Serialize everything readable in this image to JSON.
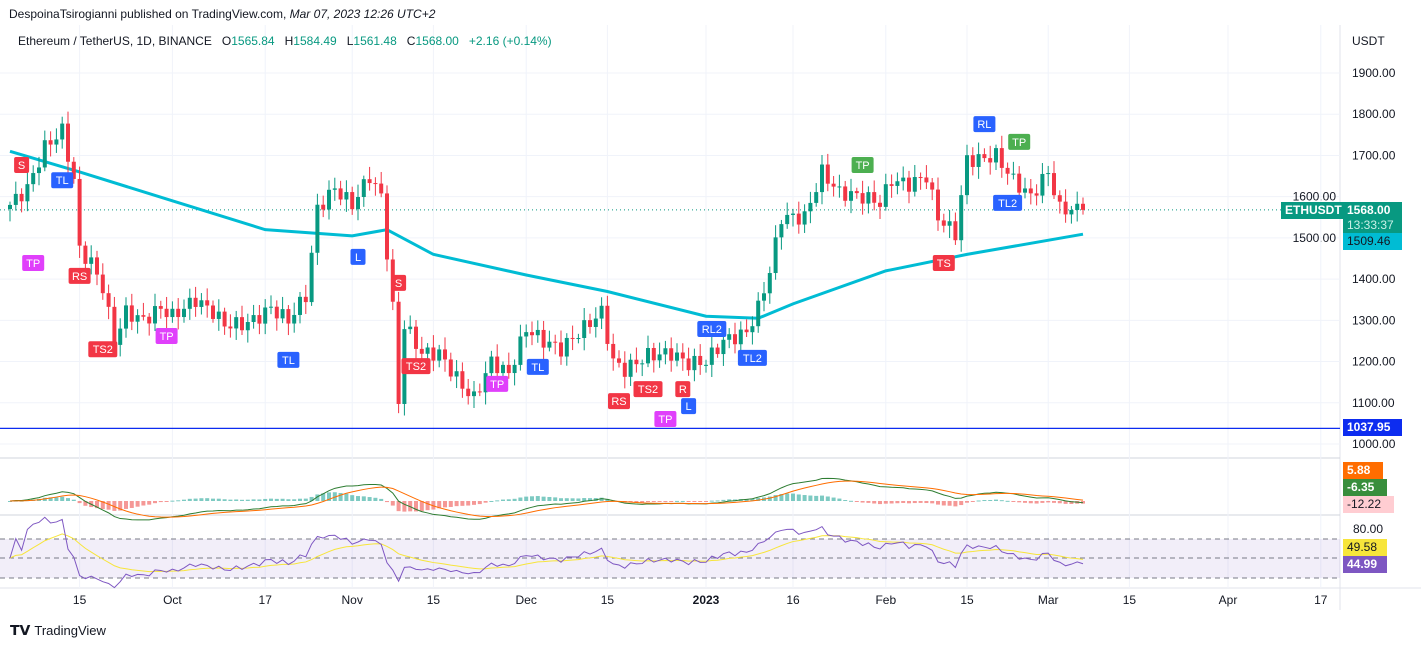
{
  "header": {
    "publisher": "DespoinaTsirogianni published on TradingView.com,",
    "published_date": "Mar 07, 2023 12:26 UTC+2"
  },
  "legend": {
    "symbol": "Ethereum / TetherUS, 1D, BINANCE",
    "open_label": "O",
    "open": "1565.84",
    "high_label": "H",
    "high": "1584.49",
    "low_label": "L",
    "low": "1561.48",
    "close_label": "C",
    "close": "1568.00",
    "change": "+2.16 (+0.14%)"
  },
  "axis": {
    "currency": "USDT",
    "symbol_tag": "ETHUSDT",
    "last_price": "1568.00",
    "countdown": "13:33:37",
    "ma_value": "1509.46",
    "hline_value": "1037.95",
    "macd_values": [
      "5.88",
      "-6.35",
      "-12.22"
    ],
    "rsi_values": [
      "49.58",
      "44.99"
    ],
    "rsi_top": "80.00"
  },
  "footer": {
    "brand": "TradingView"
  },
  "colors": {
    "up": "#089981",
    "down": "#f23645",
    "ma": "#00bcd4",
    "hline": "#0d2cf0",
    "rsi": "#7e57c2",
    "rsi_ma": "#f7e53b",
    "macd": "#2e7d32",
    "signal": "#ff6d00"
  },
  "chart_data": {
    "type": "candlestick",
    "start_date": "2022-09-03",
    "ylim": [
      1000,
      1950
    ],
    "yticks": [
      1000,
      1100,
      1200,
      1300,
      1400,
      1500,
      1600,
      1700,
      1800,
      1900
    ],
    "xticks": [
      {
        "label": "15",
        "date": "2022-09-15"
      },
      {
        "label": "Oct",
        "date": "2022-10-01"
      },
      {
        "label": "17",
        "date": "2022-10-17"
      },
      {
        "label": "Nov",
        "date": "2022-11-01"
      },
      {
        "label": "15",
        "date": "2022-11-15"
      },
      {
        "label": "Dec",
        "date": "2022-12-01"
      },
      {
        "label": "15",
        "date": "2022-12-15"
      },
      {
        "label": "2023",
        "date": "2023-01-01"
      },
      {
        "label": "16",
        "date": "2023-01-16"
      },
      {
        "label": "Feb",
        "date": "2023-02-01"
      },
      {
        "label": "15",
        "date": "2023-02-15"
      },
      {
        "label": "Mar",
        "date": "2023-03-01"
      },
      {
        "label": "15",
        "date": "2023-03-15"
      },
      {
        "label": "Apr",
        "date": "2023-04-01"
      },
      {
        "label": "17",
        "date": "2023-04-17"
      }
    ],
    "close_path": [
      [
        "2022-09-03",
        1580
      ],
      [
        "2022-09-06",
        1620
      ],
      [
        "2022-09-09",
        1720
      ],
      [
        "2022-09-12",
        1760
      ],
      [
        "2022-09-14",
        1640
      ],
      [
        "2022-09-15",
        1470
      ],
      [
        "2022-09-17",
        1440
      ],
      [
        "2022-09-19",
        1380
      ],
      [
        "2022-09-21",
        1250
      ],
      [
        "2022-09-23",
        1320
      ],
      [
        "2022-09-26",
        1300
      ],
      [
        "2022-09-29",
        1330
      ],
      [
        "2022-10-01",
        1310
      ],
      [
        "2022-10-05",
        1350
      ],
      [
        "2022-10-08",
        1320
      ],
      [
        "2022-10-10",
        1290
      ],
      [
        "2022-10-13",
        1290
      ],
      [
        "2022-10-15",
        1300
      ],
      [
        "2022-10-18",
        1330
      ],
      [
        "2022-10-21",
        1300
      ],
      [
        "2022-10-24",
        1360
      ],
      [
        "2022-10-25",
        1460
      ],
      [
        "2022-10-26",
        1570
      ],
      [
        "2022-10-29",
        1620
      ],
      [
        "2022-11-01",
        1580
      ],
      [
        "2022-11-04",
        1650
      ],
      [
        "2022-11-06",
        1600
      ],
      [
        "2022-11-08",
        1330
      ],
      [
        "2022-11-09",
        1100
      ],
      [
        "2022-11-10",
        1290
      ],
      [
        "2022-11-13",
        1220
      ],
      [
        "2022-11-16",
        1220
      ],
      [
        "2022-11-20",
        1140
      ],
      [
        "2022-11-22",
        1110
      ],
      [
        "2022-11-25",
        1200
      ],
      [
        "2022-11-28",
        1170
      ],
      [
        "2022-12-01",
        1280
      ],
      [
        "2022-12-04",
        1250
      ],
      [
        "2022-12-07",
        1230
      ],
      [
        "2022-12-10",
        1270
      ],
      [
        "2022-12-14",
        1320
      ],
      [
        "2022-12-16",
        1200
      ],
      [
        "2022-12-18",
        1180
      ],
      [
        "2022-12-22",
        1215
      ],
      [
        "2022-12-26",
        1220
      ],
      [
        "2022-12-29",
        1195
      ],
      [
        "2023-01-01",
        1200
      ],
      [
        "2023-01-04",
        1250
      ],
      [
        "2023-01-08",
        1270
      ],
      [
        "2023-01-10",
        1330
      ],
      [
        "2023-01-12",
        1420
      ],
      [
        "2023-01-14",
        1550
      ],
      [
        "2023-01-18",
        1550
      ],
      [
        "2023-01-21",
        1660
      ],
      [
        "2023-01-24",
        1610
      ],
      [
        "2023-01-28",
        1600
      ],
      [
        "2023-01-31",
        1585
      ],
      [
        "2023-02-02",
        1640
      ],
      [
        "2023-02-05",
        1630
      ],
      [
        "2023-02-08",
        1650
      ],
      [
        "2023-02-10",
        1550
      ],
      [
        "2023-02-13",
        1510
      ],
      [
        "2023-02-15",
        1690
      ],
      [
        "2023-02-17",
        1690
      ],
      [
        "2023-02-20",
        1700
      ],
      [
        "2023-02-23",
        1640
      ],
      [
        "2023-02-26",
        1600
      ],
      [
        "2023-03-01",
        1660
      ],
      [
        "2023-03-03",
        1570
      ],
      [
        "2023-03-07",
        1568
      ]
    ],
    "moving_average": [
      [
        "2022-09-03",
        1710
      ],
      [
        "2022-09-15",
        1660
      ],
      [
        "2022-10-01",
        1590
      ],
      [
        "2022-10-17",
        1520
      ],
      [
        "2022-11-01",
        1505
      ],
      [
        "2022-11-07",
        1520
      ],
      [
        "2022-11-15",
        1460
      ],
      [
        "2022-12-01",
        1410
      ],
      [
        "2022-12-15",
        1370
      ],
      [
        "2023-01-01",
        1310
      ],
      [
        "2023-01-10",
        1305
      ],
      [
        "2023-01-16",
        1340
      ],
      [
        "2023-02-01",
        1420
      ],
      [
        "2023-02-15",
        1460
      ],
      [
        "2023-03-07",
        1509
      ]
    ],
    "horizontal_line": 1037.95,
    "signals": [
      {
        "label": "S",
        "date": "2022-09-05",
        "price": 1677,
        "color": "#f23645"
      },
      {
        "label": "TL",
        "date": "2022-09-12",
        "price": 1640,
        "color": "#2962ff"
      },
      {
        "label": "TP",
        "date": "2022-09-07",
        "price": 1439,
        "color": "#e040fb"
      },
      {
        "label": "RS",
        "date": "2022-09-15",
        "price": 1408,
        "color": "#f23645"
      },
      {
        "label": "TS2",
        "date": "2022-09-19",
        "price": 1230,
        "color": "#f23645"
      },
      {
        "label": "TP",
        "date": "2022-09-30",
        "price": 1262,
        "color": "#e040fb"
      },
      {
        "label": "TL",
        "date": "2022-10-21",
        "price": 1204,
        "color": "#2962ff"
      },
      {
        "label": "L",
        "date": "2022-11-02",
        "price": 1454,
        "color": "#2962ff"
      },
      {
        "label": "S",
        "date": "2022-11-09",
        "price": 1391,
        "color": "#f23645"
      },
      {
        "label": "TS2",
        "date": "2022-11-12",
        "price": 1189,
        "color": "#f23645"
      },
      {
        "label": "TP",
        "date": "2022-11-26",
        "price": 1146,
        "color": "#e040fb"
      },
      {
        "label": "TL",
        "date": "2022-12-03",
        "price": 1187,
        "color": "#2962ff"
      },
      {
        "label": "RS",
        "date": "2022-12-17",
        "price": 1104,
        "color": "#f23645"
      },
      {
        "label": "TS2",
        "date": "2022-12-22",
        "price": 1133,
        "color": "#f23645"
      },
      {
        "label": "TP",
        "date": "2022-12-25",
        "price": 1143,
        "color": "#e040fb"
      },
      {
        "label": "R",
        "date": "2022-12-28",
        "price": 1133,
        "color": "#f23645"
      },
      {
        "label": "L",
        "date": "2022-12-29",
        "price": 1133,
        "color": "#2962ff"
      },
      {
        "label": "RL2",
        "date": "2023-01-02",
        "price": 1279,
        "color": "#2962ff"
      },
      {
        "label": "TL2",
        "date": "2023-01-09",
        "price": 1209,
        "color": "#2962ff"
      },
      {
        "label": "TP",
        "date": "2023-01-28",
        "price": 1677,
        "color": "#4caf50"
      },
      {
        "label": "TS",
        "date": "2023-02-11",
        "price": 1439,
        "color": "#f23645"
      },
      {
        "label": "RL",
        "date": "2023-02-18",
        "price": 1776,
        "color": "#2962ff"
      },
      {
        "label": "TP",
        "date": "2023-02-24",
        "price": 1733,
        "color": "#4caf50"
      },
      {
        "label": "TL2",
        "date": "2023-02-22",
        "price": 1585,
        "color": "#2962ff"
      }
    ],
    "rsi_levels": [
      70,
      50,
      30
    ]
  }
}
